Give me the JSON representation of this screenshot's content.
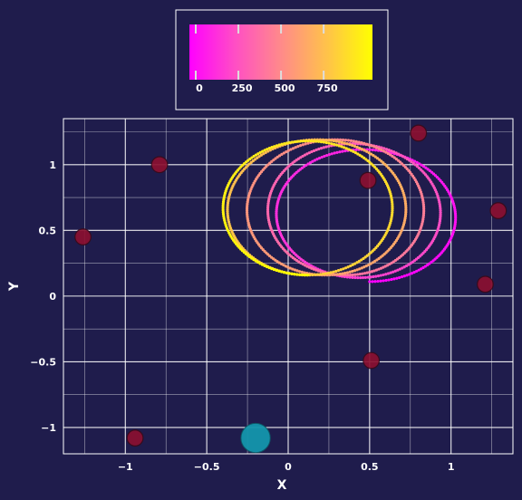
{
  "colors": {
    "background": "#1f1c4c",
    "frame": "#ffffff",
    "grid": "#ffffff",
    "obstacle_fill": "#8b1030",
    "obstacle_edge": "#3a0a1a",
    "agent_fill": "#1496ac",
    "colormap": [
      "#ff00ff",
      "#ff4fc4",
      "#ff8a8a",
      "#ffc24a",
      "#ffff00"
    ]
  },
  "colorbar": {
    "min": 0,
    "max": 999,
    "ticks": [
      "0",
      "250",
      "500",
      "750"
    ],
    "tick_values": [
      0,
      250,
      500,
      750
    ]
  },
  "chart_data": {
    "type": "scatter",
    "title": "",
    "xlabel": "X",
    "ylabel": "Y",
    "xlim": [
      -1.38,
      1.38
    ],
    "ylim": [
      -1.2,
      1.35
    ],
    "xticks": [
      -1,
      -0.5,
      0,
      0.5,
      1
    ],
    "xtick_labels": [
      "−1",
      "−0.5",
      "0",
      "0.5",
      "1"
    ],
    "yticks": [
      -1,
      -0.5,
      0,
      0.5,
      1
    ],
    "ytick_labels": [
      "−1",
      "−0.5",
      "0",
      "0.5",
      "1"
    ],
    "grid": true,
    "minor_grid_step": 0.25,
    "obstacles": [
      {
        "x": -1.26,
        "y": 0.45,
        "r": 0.07
      },
      {
        "x": -0.79,
        "y": 1.0,
        "r": 0.07
      },
      {
        "x": 0.49,
        "y": 0.88,
        "r": 0.07
      },
      {
        "x": 0.8,
        "y": 1.24,
        "r": 0.07
      },
      {
        "x": 1.29,
        "y": 0.65,
        "r": 0.07
      },
      {
        "x": 1.21,
        "y": 0.09,
        "r": 0.07
      },
      {
        "x": 0.51,
        "y": -0.49,
        "r": 0.07
      },
      {
        "x": -0.94,
        "y": -1.08,
        "r": 0.07
      }
    ],
    "agent": {
      "x": -0.2,
      "y": -1.08,
      "r": 0.1
    },
    "trajectory": {
      "points": 1000,
      "colorbar_range": [
        0,
        999
      ],
      "loops": [
        {
          "cx": 0.5,
          "cy": 0.6,
          "rx": 0.55,
          "ry": 0.49
        },
        {
          "cx": 0.44,
          "cy": 0.64,
          "rx": 0.52,
          "ry": 0.5
        },
        {
          "cx": 0.36,
          "cy": 0.67,
          "rx": 0.5,
          "ry": 0.51
        },
        {
          "cx": 0.23,
          "cy": 0.68,
          "rx": 0.52,
          "ry": 0.52
        },
        {
          "cx": 0.12,
          "cy": 0.67,
          "rx": 0.52,
          "ry": 0.51
        }
      ],
      "end": {
        "x": -0.37,
        "y": 0.45
      }
    }
  }
}
